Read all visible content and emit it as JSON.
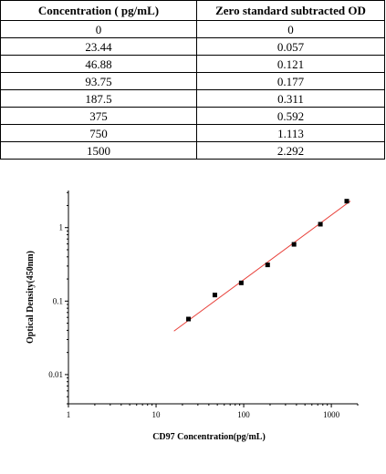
{
  "table": {
    "headers": [
      "Concentration ( pg/mL)",
      "Zero standard subtracted OD"
    ],
    "rows": [
      [
        "0",
        "0"
      ],
      [
        "23.44",
        "0.057"
      ],
      [
        "46.88",
        "0.121"
      ],
      [
        "93.75",
        "0.177"
      ],
      [
        "187.5",
        "0.311"
      ],
      [
        "375",
        "0.592"
      ],
      [
        "750",
        "1.113"
      ],
      [
        "1500",
        "2.292"
      ]
    ]
  },
  "chart_data": {
    "type": "scatter",
    "xlabel": "CD97 Concentration(pg/mL)",
    "ylabel": "Optical Density(450nm)",
    "xscale": "log",
    "yscale": "log",
    "xlim": [
      1,
      2000
    ],
    "ylim": [
      0.004,
      3.2
    ],
    "xticks": [
      1,
      10,
      100,
      1000
    ],
    "xtick_labels": [
      "1",
      "10",
      "100",
      "1000"
    ],
    "yticks": [
      0.01,
      0.1,
      1
    ],
    "ytick_labels": [
      "0.01",
      "0.1",
      "1"
    ],
    "grid": false,
    "points": {
      "x": [
        23.44,
        46.88,
        93.75,
        187.5,
        375,
        750,
        1500
      ],
      "y": [
        0.057,
        0.121,
        0.177,
        0.311,
        0.592,
        1.113,
        2.292
      ]
    },
    "fit_line": {
      "x": [
        16,
        1650
      ],
      "y": [
        0.039,
        2.3
      ]
    },
    "colors": {
      "points": "#000000",
      "fit": "#e8403a",
      "axis": "#000000"
    }
  }
}
